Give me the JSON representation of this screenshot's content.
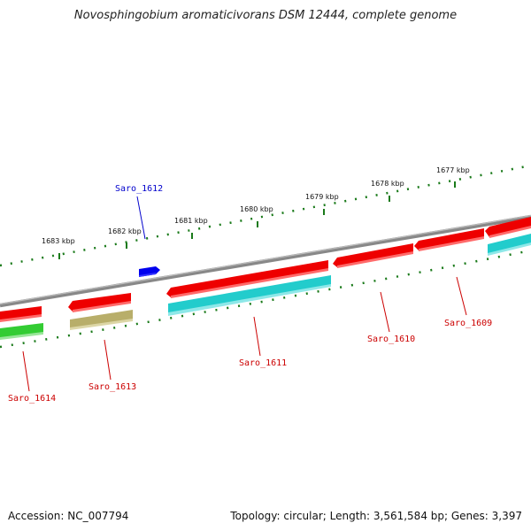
{
  "title": "Novosphingobium aromaticivorans DSM 12444, complete genome",
  "footer": {
    "accession": "Accession: NC_007794",
    "stats": "Topology: circular; Length: 3,561,584 bp; Genes: 3,397"
  },
  "scale_labels": [
    "1683 kbp",
    "1682 kbp",
    "1681 kbp",
    "1680 kbp",
    "1679 kbp",
    "1678 kbp",
    "1677 kbp"
  ],
  "genes": [
    {
      "name": "Saro_1612",
      "strand": "+",
      "color": "#0000ee",
      "label_color": "#0000cc"
    },
    {
      "name": "Saro_1609",
      "strand": "-",
      "color": "#ee0000",
      "label_color": "#cc0000"
    },
    {
      "name": "Saro_1610",
      "strand": "-",
      "color": "#ee0000",
      "label_color": "#cc0000"
    },
    {
      "name": "Saro_1611",
      "strand": "-",
      "color": "#ee0000",
      "label_color": "#cc0000"
    },
    {
      "name": "Saro_1613",
      "strand": "-",
      "color": "#ee0000",
      "label_color": "#cc0000"
    },
    {
      "name": "Saro_1614",
      "strand": "-",
      "color": "#ee0000",
      "label_color": "#cc0000"
    }
  ],
  "cog_colors": {
    "cyan": "#22cccc",
    "olive": "#b8ae6a",
    "green": "#33cc33",
    "backbone": "#888888",
    "ticks": "#1a7a1a"
  }
}
